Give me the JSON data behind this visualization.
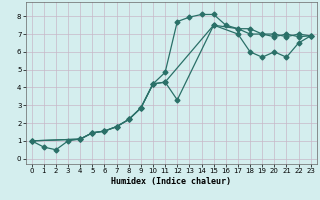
{
  "xlabel": "Humidex (Indice chaleur)",
  "bg_color": "#d4eeee",
  "grid_color": "#c8b8c8",
  "line_color": "#2a7068",
  "xlim": [
    -0.5,
    23.5
  ],
  "ylim": [
    -0.3,
    8.8
  ],
  "xticks": [
    0,
    1,
    2,
    3,
    4,
    5,
    6,
    7,
    8,
    9,
    10,
    11,
    12,
    13,
    14,
    15,
    16,
    17,
    18,
    19,
    20,
    21,
    22,
    23
  ],
  "yticks": [
    0,
    1,
    2,
    3,
    4,
    5,
    6,
    7,
    8
  ],
  "curve1_x": [
    0,
    1,
    2,
    3,
    4,
    5,
    6,
    7,
    8,
    9,
    10,
    11,
    12,
    13,
    14,
    15,
    16,
    17,
    18,
    19,
    20,
    21,
    22,
    23
  ],
  "curve1_y": [
    1.0,
    0.65,
    0.5,
    1.0,
    1.1,
    1.45,
    1.55,
    1.8,
    2.2,
    2.85,
    4.2,
    4.85,
    7.7,
    7.95,
    8.1,
    8.1,
    7.5,
    7.3,
    7.3,
    7.0,
    7.0,
    6.85,
    7.0,
    6.9
  ],
  "curve2_x": [
    0,
    4,
    5,
    6,
    7,
    8,
    9,
    10,
    11,
    12,
    15,
    17,
    18,
    19,
    20,
    21,
    22,
    23
  ],
  "curve2_y": [
    1.0,
    1.1,
    1.45,
    1.55,
    1.8,
    2.2,
    2.85,
    4.2,
    4.3,
    3.3,
    7.5,
    7.3,
    7.0,
    7.0,
    6.85,
    7.0,
    6.85,
    6.9
  ],
  "curve3_x": [
    0,
    4,
    5,
    6,
    7,
    8,
    9,
    10,
    11,
    15,
    17,
    18,
    19,
    20,
    21,
    22,
    23
  ],
  "curve3_y": [
    1.0,
    1.1,
    1.45,
    1.55,
    1.8,
    2.2,
    2.85,
    4.2,
    4.3,
    7.5,
    7.0,
    6.0,
    5.7,
    6.0,
    5.7,
    6.5,
    6.9
  ]
}
